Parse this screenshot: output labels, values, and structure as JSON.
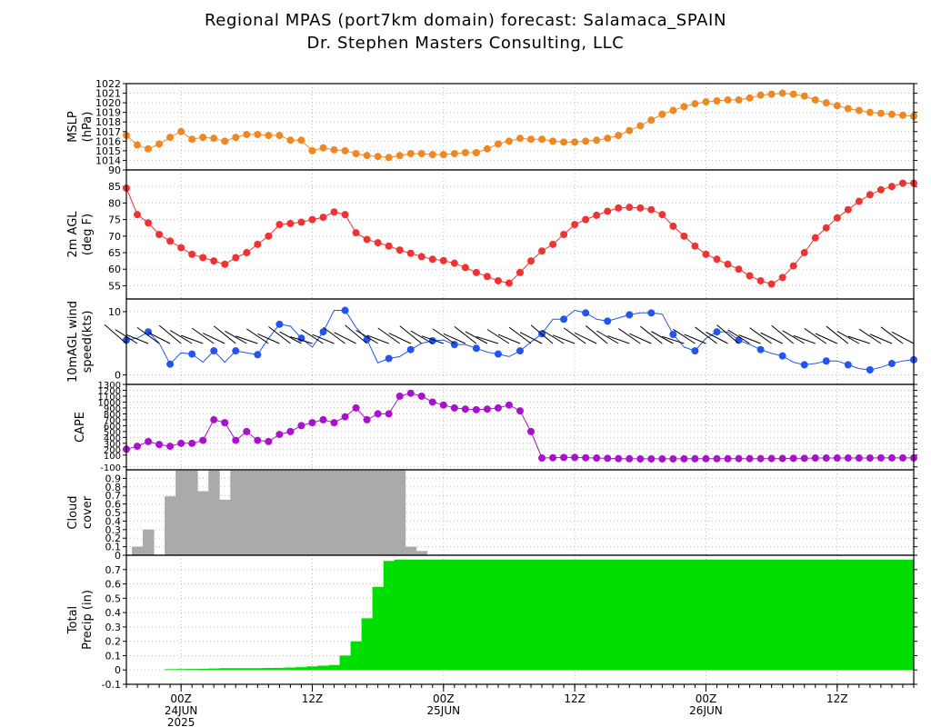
{
  "titles": {
    "line1": "Regional MPAS (port7km domain) forecast: Salamaca_SPAIN",
    "line2": "Dr. Stephen Masters Consulting, LLC"
  },
  "chart_data": {
    "type": "multi-panel time series meteogram",
    "n_steps": 73,
    "step_hours": 1,
    "x_ticks": [
      {
        "index": 5,
        "label": "00Z",
        "date": "24JUN",
        "year": "2025"
      },
      {
        "index": 17,
        "label": "12Z"
      },
      {
        "index": 29,
        "label": "00Z",
        "date": "25JUN"
      },
      {
        "index": 41,
        "label": "12Z"
      },
      {
        "index": 53,
        "label": "00Z",
        "date": "26JUN"
      },
      {
        "index": 65,
        "label": "12Z"
      }
    ],
    "panels": [
      {
        "id": "mslp",
        "type": "line",
        "ylabel": [
          "MSLP",
          "(hPa)"
        ],
        "color": "#ee8822",
        "ylim": [
          1013,
          1022
        ],
        "yticks": [
          1014,
          1015,
          1016,
          1017,
          1018,
          1019,
          1020,
          1021,
          1022
        ],
        "values": [
          1016.6,
          1015.6,
          1015.2,
          1015.7,
          1016.4,
          1017.0,
          1016.2,
          1016.4,
          1016.3,
          1016.0,
          1016.4,
          1016.7,
          1016.7,
          1016.6,
          1016.6,
          1016.1,
          1016.1,
          1015.0,
          1015.3,
          1015.1,
          1015.0,
          1014.7,
          1014.5,
          1014.4,
          1014.3,
          1014.5,
          1014.7,
          1014.7,
          1014.6,
          1014.6,
          1014.7,
          1014.8,
          1014.8,
          1015.2,
          1015.7,
          1016.0,
          1016.3,
          1016.2,
          1016.2,
          1016.0,
          1015.9,
          1015.9,
          1016.0,
          1016.1,
          1016.3,
          1016.6,
          1017.1,
          1017.6,
          1018.2,
          1018.8,
          1019.2,
          1019.6,
          1019.9,
          1020.1,
          1020.2,
          1020.3,
          1020.3,
          1020.5,
          1020.8,
          1020.9,
          1021.0,
          1020.9,
          1020.7,
          1020.3,
          1020.0,
          1019.7,
          1019.4,
          1019.2,
          1019.0,
          1018.9,
          1018.8,
          1018.7,
          1018.6
        ],
        "marker_every": 1
      },
      {
        "id": "temp",
        "type": "line",
        "ylabel": [
          "2m AGL",
          "(deg F)"
        ],
        "color": "#ee3333",
        "ylim": [
          51,
          90
        ],
        "yticks": [
          55,
          60,
          65,
          70,
          75,
          80,
          85,
          90
        ],
        "values": [
          84.5,
          76.5,
          74,
          70.5,
          68.5,
          66.5,
          64.5,
          63.5,
          62.5,
          61.5,
          63.5,
          65,
          67.5,
          70,
          73.5,
          73.8,
          74.2,
          75,
          75.7,
          77.3,
          76.5,
          71,
          69,
          68,
          67,
          65.8,
          64.8,
          63.8,
          63,
          62.6,
          61.8,
          60.5,
          59,
          57.8,
          56.5,
          55.8,
          59,
          62.5,
          65.5,
          67.5,
          70.5,
          73.5,
          75,
          76.3,
          77.5,
          78.5,
          78.7,
          78.5,
          78,
          76.5,
          73,
          70,
          67,
          64.5,
          63,
          61.5,
          60,
          58,
          56.5,
          55.5,
          57.5,
          61,
          65,
          69.5,
          72.5,
          75.5,
          78,
          80.5,
          82.5,
          84,
          85,
          86,
          86
        ],
        "marker_every": 1
      },
      {
        "id": "wind",
        "type": "line",
        "ylabel": [
          "10mAGL wind",
          "speed(kts)"
        ],
        "color": "#2255ee",
        "ylim": [
          -1.5,
          12
        ],
        "yticks": [
          0,
          10
        ],
        "values": [
          5.5,
          5.8,
          6.8,
          5,
          1.7,
          3.5,
          3.3,
          2.0,
          3.8,
          2.0,
          3.8,
          3.5,
          3.2,
          5.8,
          8.0,
          7.7,
          5.8,
          4.4,
          6.8,
          10.2,
          10.2,
          7.5,
          5.6,
          1.9,
          2.6,
          2.9,
          4.0,
          5.0,
          5.4,
          5.5,
          4.8,
          4.8,
          4.2,
          3.6,
          3.3,
          2.9,
          3.8,
          5.2,
          6.5,
          8.8,
          8.8,
          10.2,
          9.8,
          8.8,
          8.5,
          9.0,
          9.5,
          9.8,
          9.8,
          9.6,
          6.4,
          4.4,
          3.8,
          5.8,
          6.8,
          6.8,
          5.5,
          4.8,
          4.0,
          3.4,
          3.0,
          2.0,
          1.6,
          1.8,
          2.2,
          2.2,
          1.6,
          1.0,
          0.8,
          1.2,
          1.8,
          2.2,
          2.4
        ],
        "marker_every": 2,
        "barbs": {
          "start_index": 0,
          "end_index": 72,
          "note": "wind barbs along panel"
        }
      },
      {
        "id": "cape",
        "type": "line",
        "ylabel": [
          "CAPE"
        ],
        "color": "#aa11cc",
        "ylim": [
          -150,
          1300
        ],
        "yticks": [
          -100,
          100,
          200,
          300,
          400,
          500,
          600,
          700,
          800,
          900,
          1000,
          1100,
          1200,
          1300
        ],
        "values": [
          200,
          250,
          330,
          280,
          250,
          300,
          300,
          350,
          700,
          650,
          350,
          500,
          350,
          330,
          450,
          500,
          600,
          650,
          700,
          650,
          750,
          900,
          700,
          800,
          800,
          1100,
          1150,
          1100,
          1000,
          950,
          900,
          880,
          870,
          880,
          900,
          950,
          850,
          500,
          50,
          55,
          60,
          60,
          55,
          50,
          45,
          40,
          38,
          36,
          36,
          36,
          36,
          37,
          38,
          38,
          38,
          38,
          40,
          40,
          40,
          42,
          42,
          45,
          45,
          50,
          50,
          50,
          50,
          50,
          50,
          52,
          52,
          52,
          52
        ],
        "marker_every": 1
      },
      {
        "id": "cloud",
        "type": "bar",
        "ylabel": [
          "Cloud",
          "cover"
        ],
        "color": "#aaaaaa",
        "ylim": [
          0,
          1.0
        ],
        "yticks": [
          0,
          0.1,
          0.2,
          0.3,
          0.4,
          0.5,
          0.6,
          0.7,
          0.8,
          0.9
        ],
        "values": [
          0,
          0.1,
          0.3,
          0,
          0.69,
          1,
          1,
          0.75,
          1,
          0.65,
          1,
          1,
          1,
          1,
          1,
          1,
          1,
          1,
          1,
          1,
          1,
          1,
          1,
          1,
          1,
          1,
          0.1,
          0.05,
          0,
          0,
          0,
          0,
          0,
          0,
          0,
          0,
          0,
          0,
          0,
          0,
          0,
          0,
          0,
          0,
          0,
          0,
          0,
          0,
          0,
          0,
          0,
          0,
          0,
          0,
          0,
          0,
          0,
          0,
          0,
          0,
          0,
          0,
          0,
          0,
          0,
          0,
          0,
          0,
          0,
          0,
          0,
          0,
          0
        ]
      },
      {
        "id": "precip",
        "type": "area",
        "ylabel": [
          "Total",
          "Precip (in)"
        ],
        "color": "#00dd00",
        "ylim": [
          -0.1,
          0.8
        ],
        "yticks": [
          -0.1,
          0,
          0.1,
          0.2,
          0.3,
          0.4,
          0.5,
          0.6,
          0.7
        ],
        "values": [
          0,
          0,
          0,
          0,
          0.005,
          0.006,
          0.007,
          0.008,
          0.01,
          0.012,
          0.012,
          0.012,
          0.013,
          0.014,
          0.015,
          0.017,
          0.02,
          0.025,
          0.03,
          0.035,
          0.1,
          0.2,
          0.36,
          0.58,
          0.76,
          0.77,
          0.77,
          0.77,
          0.77,
          0.77,
          0.77,
          0.77,
          0.77,
          0.77,
          0.77,
          0.77,
          0.77,
          0.77,
          0.77,
          0.77,
          0.77,
          0.77,
          0.77,
          0.77,
          0.77,
          0.77,
          0.77,
          0.77,
          0.77,
          0.77,
          0.77,
          0.77,
          0.77,
          0.77,
          0.77,
          0.77,
          0.77,
          0.77,
          0.77,
          0.77,
          0.77,
          0.77,
          0.77,
          0.77,
          0.77,
          0.77,
          0.77,
          0.77,
          0.77,
          0.77,
          0.77,
          0.77,
          0.77
        ]
      }
    ]
  }
}
